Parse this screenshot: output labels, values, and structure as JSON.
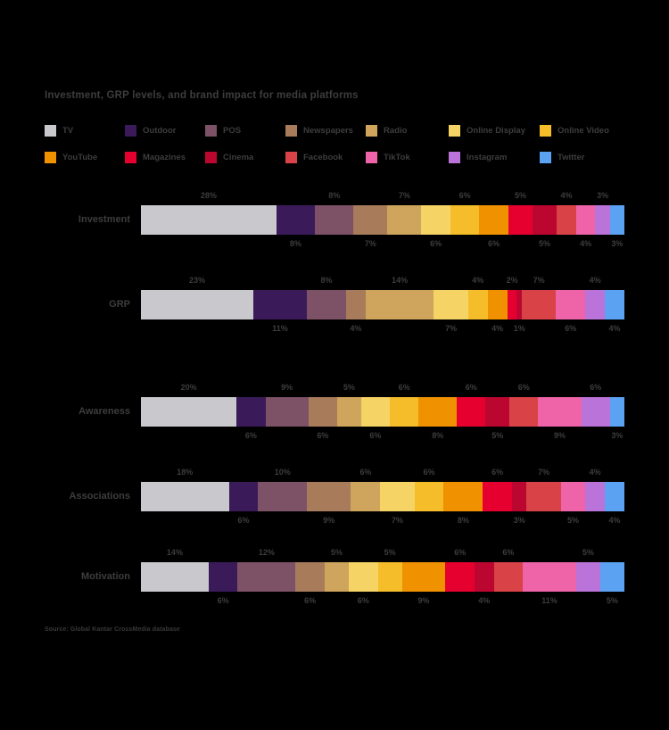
{
  "title": "Investment, GRP levels, and brand impact for media platforms",
  "source_note": "Source: Global Kantar CrossMedia database",
  "background_color": "#000000",
  "text_color": "#3d3d3d",
  "chart_data": {
    "type": "bar",
    "variant": "horizontal-stacked",
    "unit": "%",
    "legend_position": "top",
    "value_labels": "alternating-above-below",
    "categories": [
      "Investment",
      "GRP",
      "Awareness",
      "Associations",
      "Motivation"
    ],
    "series": [
      {
        "name": "TV",
        "color": "#c9c9cd",
        "values": [
          28,
          23,
          20,
          18,
          14
        ]
      },
      {
        "name": "Outdoor",
        "color": "#3b1a5a",
        "values": [
          8,
          11,
          6,
          6,
          6
        ]
      },
      {
        "name": "POS",
        "color": "#7d5166",
        "values": [
          8,
          8,
          9,
          10,
          12
        ]
      },
      {
        "name": "Newspapers",
        "color": "#a87c5a",
        "values": [
          7,
          4,
          6,
          9,
          6
        ]
      },
      {
        "name": "Radio",
        "color": "#cfa45c",
        "values": [
          7,
          14,
          5,
          6,
          5
        ]
      },
      {
        "name": "Online Display",
        "color": "#f5d365",
        "values": [
          6,
          7,
          6,
          7,
          6
        ]
      },
      {
        "name": "Online Video",
        "color": "#f5bd29",
        "values": [
          6,
          4,
          6,
          6,
          5
        ]
      },
      {
        "name": "YouTube",
        "color": "#f09100",
        "values": [
          6,
          4,
          8,
          8,
          9
        ]
      },
      {
        "name": "Magazines",
        "color": "#e60030",
        "values": [
          5,
          2,
          6,
          6,
          6
        ]
      },
      {
        "name": "Cinema",
        "color": "#bb0730",
        "values": [
          5,
          1,
          5,
          3,
          4
        ]
      },
      {
        "name": "Facebook",
        "color": "#d94347",
        "values": [
          4,
          7,
          6,
          7,
          6
        ]
      },
      {
        "name": "TikTok",
        "color": "#ef63a9",
        "values": [
          4,
          6,
          9,
          5,
          11
        ]
      },
      {
        "name": "Instagram",
        "color": "#b973d9",
        "values": [
          3,
          4,
          6,
          4,
          5
        ]
      },
      {
        "name": "Twitter",
        "color": "#5ba2f2",
        "values": [
          3,
          4,
          3,
          4,
          5
        ]
      }
    ]
  }
}
